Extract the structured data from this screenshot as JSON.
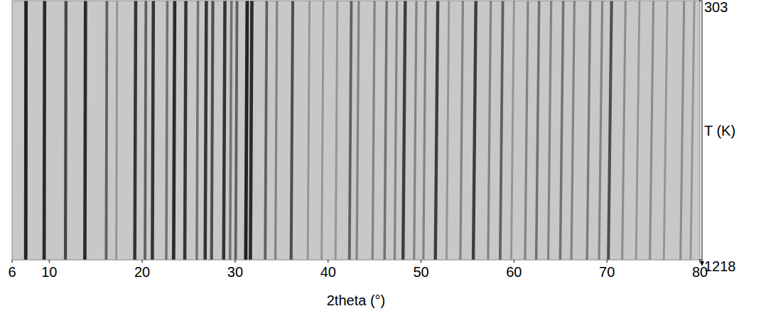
{
  "chart_data": {
    "type": "heatmap",
    "xlabel": "2theta (°)",
    "ylabel": "T (K)",
    "xlim": [
      6,
      80
    ],
    "xticks": [
      6,
      10,
      20,
      30,
      40,
      50,
      60,
      70,
      80
    ],
    "ylim": [
      303,
      1218
    ],
    "yticks": [
      303,
      1218
    ],
    "zlim": [
      0,
      1
    ],
    "T": [
      303,
      1218
    ],
    "peaks": [
      {
        "x": [
          7.5,
          7.47
        ],
        "intensity": 0.95
      },
      {
        "x": [
          9.5,
          9.45
        ],
        "intensity": 0.9
      },
      {
        "x": [
          11.8,
          11.74
        ],
        "intensity": 0.75
      },
      {
        "x": [
          13.9,
          13.83
        ],
        "intensity": 0.9
      },
      {
        "x": [
          16.2,
          16.12
        ],
        "intensity": 0.6
      },
      {
        "x": [
          17.3,
          17.21
        ],
        "intensity": 0.3
      },
      {
        "x": [
          19.3,
          19.2
        ],
        "intensity": 0.85
      },
      {
        "x": [
          20.4,
          20.3
        ],
        "intensity": 0.6
      },
      {
        "x": [
          21.2,
          21.09
        ],
        "intensity": 0.85
      },
      {
        "x": [
          22.7,
          22.59
        ],
        "intensity": 0.5
      },
      {
        "x": [
          23.5,
          23.38
        ],
        "intensity": 0.9
      },
      {
        "x": [
          24.7,
          24.58
        ],
        "intensity": 0.85
      },
      {
        "x": [
          26.0,
          25.87
        ],
        "intensity": 0.5
      },
      {
        "x": [
          26.9,
          26.77
        ],
        "intensity": 0.85
      },
      {
        "x": [
          27.6,
          27.46
        ],
        "intensity": 0.7
      },
      {
        "x": [
          28.9,
          28.76
        ],
        "intensity": 0.85
      },
      {
        "x": [
          29.6,
          29.45
        ],
        "intensity": 0.5
      },
      {
        "x": [
          30.2,
          30.05
        ],
        "intensity": 0.6
      },
      {
        "x": [
          31.3,
          31.14
        ],
        "intensity": 0.95
      },
      {
        "x": [
          31.8,
          31.64
        ],
        "intensity": 0.9
      },
      {
        "x": [
          33.4,
          33.23
        ],
        "intensity": 0.6
      },
      {
        "x": [
          34.5,
          34.33
        ],
        "intensity": 0.4
      },
      {
        "x": [
          36.2,
          36.02
        ],
        "intensity": 0.7
      },
      {
        "x": [
          38.0,
          37.81
        ],
        "intensity": 0.3
      },
      {
        "x": [
          39.5,
          39.3
        ],
        "intensity": 0.3
      },
      {
        "x": [
          41.0,
          40.8
        ],
        "intensity": 0.3
      },
      {
        "x": [
          42.5,
          42.29
        ],
        "intensity": 0.6
      },
      {
        "x": [
          43.3,
          43.08
        ],
        "intensity": 0.4
      },
      {
        "x": [
          45.0,
          44.78
        ],
        "intensity": 0.4
      },
      {
        "x": [
          46.3,
          46.07
        ],
        "intensity": 0.5
      },
      {
        "x": [
          47.4,
          47.16
        ],
        "intensity": 0.4
      },
      {
        "x": [
          48.3,
          48.06
        ],
        "intensity": 0.8
      },
      {
        "x": [
          49.5,
          49.25
        ],
        "intensity": 0.4
      },
      {
        "x": [
          50.5,
          50.25
        ],
        "intensity": 0.4
      },
      {
        "x": [
          51.8,
          51.54
        ],
        "intensity": 0.8
      },
      {
        "x": [
          53.0,
          52.74
        ],
        "intensity": 0.3
      },
      {
        "x": [
          54.5,
          54.23
        ],
        "intensity": 0.4
      },
      {
        "x": [
          55.9,
          55.62
        ],
        "intensity": 0.8
      },
      {
        "x": [
          57.5,
          57.21
        ],
        "intensity": 0.4
      },
      {
        "x": [
          58.8,
          58.51
        ],
        "intensity": 0.6
      },
      {
        "x": [
          60.0,
          59.7
        ],
        "intensity": 0.3
      },
      {
        "x": [
          61.5,
          61.19
        ],
        "intensity": 0.4
      },
      {
        "x": [
          62.7,
          62.39
        ],
        "intensity": 0.5
      },
      {
        "x": [
          64.0,
          63.68
        ],
        "intensity": 0.4
      },
      {
        "x": [
          65.3,
          64.97
        ],
        "intensity": 0.5
      },
      {
        "x": [
          66.5,
          66.17
        ],
        "intensity": 0.4
      },
      {
        "x": [
          68.2,
          67.86
        ],
        "intensity": 0.45
      },
      {
        "x": [
          69.5,
          69.15
        ],
        "intensity": 0.4
      },
      {
        "x": [
          70.5,
          70.15
        ],
        "intensity": 0.7
      },
      {
        "x": [
          72.0,
          71.64
        ],
        "intensity": 0.35
      },
      {
        "x": [
          73.5,
          73.13
        ],
        "intensity": 0.3
      },
      {
        "x": [
          75.0,
          74.62
        ],
        "intensity": 0.35
      },
      {
        "x": [
          76.5,
          76.12
        ],
        "intensity": 0.3
      },
      {
        "x": [
          78.3,
          77.91
        ],
        "intensity": 0.35
      },
      {
        "x": [
          79.4,
          79.0
        ],
        "intensity": 0.3
      }
    ]
  }
}
